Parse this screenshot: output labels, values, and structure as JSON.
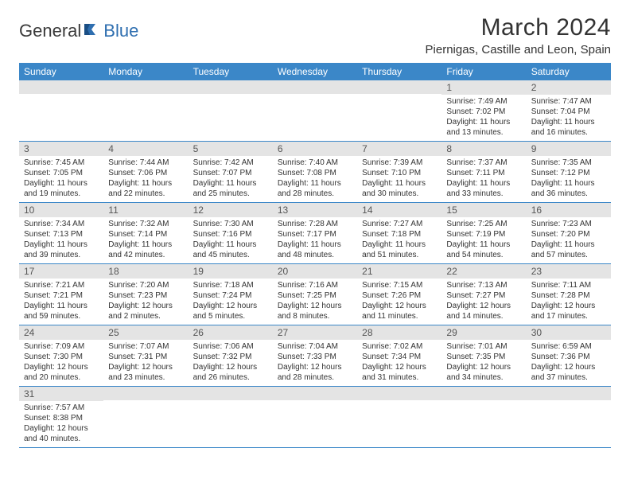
{
  "logo": {
    "part1": "General",
    "part2": "Blue"
  },
  "title": "March 2024",
  "location": "Piernigas, Castille and Leon, Spain",
  "colors": {
    "header_bg": "#3b87c8",
    "band_bg": "#e4e4e4",
    "rule": "#3b87c8",
    "logo_blue": "#2f6fb0"
  },
  "weekdays": [
    "Sunday",
    "Monday",
    "Tuesday",
    "Wednesday",
    "Thursday",
    "Friday",
    "Saturday"
  ],
  "weeks": [
    [
      {
        "num": "",
        "lines": []
      },
      {
        "num": "",
        "lines": []
      },
      {
        "num": "",
        "lines": []
      },
      {
        "num": "",
        "lines": []
      },
      {
        "num": "",
        "lines": []
      },
      {
        "num": "1",
        "lines": [
          "Sunrise: 7:49 AM",
          "Sunset: 7:02 PM",
          "Daylight: 11 hours",
          "and 13 minutes."
        ]
      },
      {
        "num": "2",
        "lines": [
          "Sunrise: 7:47 AM",
          "Sunset: 7:04 PM",
          "Daylight: 11 hours",
          "and 16 minutes."
        ]
      }
    ],
    [
      {
        "num": "3",
        "lines": [
          "Sunrise: 7:45 AM",
          "Sunset: 7:05 PM",
          "Daylight: 11 hours",
          "and 19 minutes."
        ]
      },
      {
        "num": "4",
        "lines": [
          "Sunrise: 7:44 AM",
          "Sunset: 7:06 PM",
          "Daylight: 11 hours",
          "and 22 minutes."
        ]
      },
      {
        "num": "5",
        "lines": [
          "Sunrise: 7:42 AM",
          "Sunset: 7:07 PM",
          "Daylight: 11 hours",
          "and 25 minutes."
        ]
      },
      {
        "num": "6",
        "lines": [
          "Sunrise: 7:40 AM",
          "Sunset: 7:08 PM",
          "Daylight: 11 hours",
          "and 28 minutes."
        ]
      },
      {
        "num": "7",
        "lines": [
          "Sunrise: 7:39 AM",
          "Sunset: 7:10 PM",
          "Daylight: 11 hours",
          "and 30 minutes."
        ]
      },
      {
        "num": "8",
        "lines": [
          "Sunrise: 7:37 AM",
          "Sunset: 7:11 PM",
          "Daylight: 11 hours",
          "and 33 minutes."
        ]
      },
      {
        "num": "9",
        "lines": [
          "Sunrise: 7:35 AM",
          "Sunset: 7:12 PM",
          "Daylight: 11 hours",
          "and 36 minutes."
        ]
      }
    ],
    [
      {
        "num": "10",
        "lines": [
          "Sunrise: 7:34 AM",
          "Sunset: 7:13 PM",
          "Daylight: 11 hours",
          "and 39 minutes."
        ]
      },
      {
        "num": "11",
        "lines": [
          "Sunrise: 7:32 AM",
          "Sunset: 7:14 PM",
          "Daylight: 11 hours",
          "and 42 minutes."
        ]
      },
      {
        "num": "12",
        "lines": [
          "Sunrise: 7:30 AM",
          "Sunset: 7:16 PM",
          "Daylight: 11 hours",
          "and 45 minutes."
        ]
      },
      {
        "num": "13",
        "lines": [
          "Sunrise: 7:28 AM",
          "Sunset: 7:17 PM",
          "Daylight: 11 hours",
          "and 48 minutes."
        ]
      },
      {
        "num": "14",
        "lines": [
          "Sunrise: 7:27 AM",
          "Sunset: 7:18 PM",
          "Daylight: 11 hours",
          "and 51 minutes."
        ]
      },
      {
        "num": "15",
        "lines": [
          "Sunrise: 7:25 AM",
          "Sunset: 7:19 PM",
          "Daylight: 11 hours",
          "and 54 minutes."
        ]
      },
      {
        "num": "16",
        "lines": [
          "Sunrise: 7:23 AM",
          "Sunset: 7:20 PM",
          "Daylight: 11 hours",
          "and 57 minutes."
        ]
      }
    ],
    [
      {
        "num": "17",
        "lines": [
          "Sunrise: 7:21 AM",
          "Sunset: 7:21 PM",
          "Daylight: 11 hours",
          "and 59 minutes."
        ]
      },
      {
        "num": "18",
        "lines": [
          "Sunrise: 7:20 AM",
          "Sunset: 7:23 PM",
          "Daylight: 12 hours",
          "and 2 minutes."
        ]
      },
      {
        "num": "19",
        "lines": [
          "Sunrise: 7:18 AM",
          "Sunset: 7:24 PM",
          "Daylight: 12 hours",
          "and 5 minutes."
        ]
      },
      {
        "num": "20",
        "lines": [
          "Sunrise: 7:16 AM",
          "Sunset: 7:25 PM",
          "Daylight: 12 hours",
          "and 8 minutes."
        ]
      },
      {
        "num": "21",
        "lines": [
          "Sunrise: 7:15 AM",
          "Sunset: 7:26 PM",
          "Daylight: 12 hours",
          "and 11 minutes."
        ]
      },
      {
        "num": "22",
        "lines": [
          "Sunrise: 7:13 AM",
          "Sunset: 7:27 PM",
          "Daylight: 12 hours",
          "and 14 minutes."
        ]
      },
      {
        "num": "23",
        "lines": [
          "Sunrise: 7:11 AM",
          "Sunset: 7:28 PM",
          "Daylight: 12 hours",
          "and 17 minutes."
        ]
      }
    ],
    [
      {
        "num": "24",
        "lines": [
          "Sunrise: 7:09 AM",
          "Sunset: 7:30 PM",
          "Daylight: 12 hours",
          "and 20 minutes."
        ]
      },
      {
        "num": "25",
        "lines": [
          "Sunrise: 7:07 AM",
          "Sunset: 7:31 PM",
          "Daylight: 12 hours",
          "and 23 minutes."
        ]
      },
      {
        "num": "26",
        "lines": [
          "Sunrise: 7:06 AM",
          "Sunset: 7:32 PM",
          "Daylight: 12 hours",
          "and 26 minutes."
        ]
      },
      {
        "num": "27",
        "lines": [
          "Sunrise: 7:04 AM",
          "Sunset: 7:33 PM",
          "Daylight: 12 hours",
          "and 28 minutes."
        ]
      },
      {
        "num": "28",
        "lines": [
          "Sunrise: 7:02 AM",
          "Sunset: 7:34 PM",
          "Daylight: 12 hours",
          "and 31 minutes."
        ]
      },
      {
        "num": "29",
        "lines": [
          "Sunrise: 7:01 AM",
          "Sunset: 7:35 PM",
          "Daylight: 12 hours",
          "and 34 minutes."
        ]
      },
      {
        "num": "30",
        "lines": [
          "Sunrise: 6:59 AM",
          "Sunset: 7:36 PM",
          "Daylight: 12 hours",
          "and 37 minutes."
        ]
      }
    ],
    [
      {
        "num": "31",
        "lines": [
          "Sunrise: 7:57 AM",
          "Sunset: 8:38 PM",
          "Daylight: 12 hours",
          "and 40 minutes."
        ]
      },
      {
        "num": "",
        "lines": []
      },
      {
        "num": "",
        "lines": []
      },
      {
        "num": "",
        "lines": []
      },
      {
        "num": "",
        "lines": []
      },
      {
        "num": "",
        "lines": []
      },
      {
        "num": "",
        "lines": []
      }
    ]
  ]
}
